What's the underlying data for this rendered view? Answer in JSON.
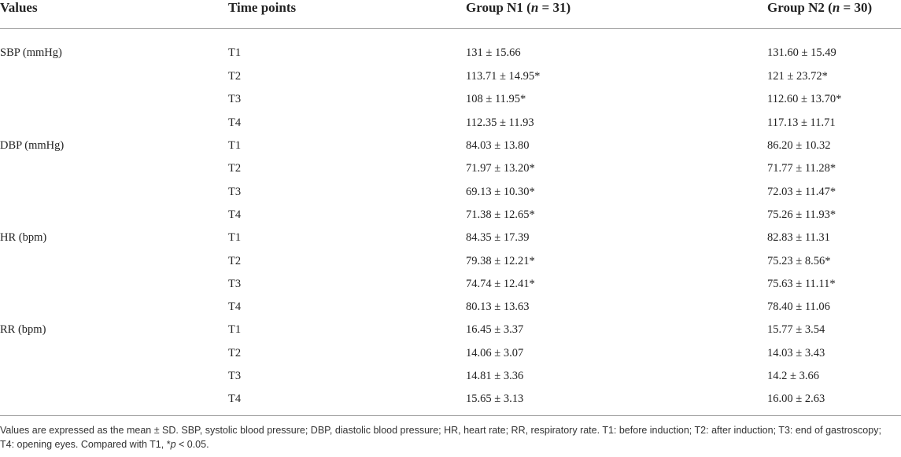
{
  "table": {
    "headers": {
      "values": "Values",
      "time_points": "Time points",
      "group_n1_prefix": "Group N1 (",
      "group_n1_n": "n",
      "group_n1_suffix": " = 31)",
      "group_n2_prefix": "Group N2 (",
      "group_n2_n": "n",
      "group_n2_suffix": " = 30)"
    },
    "rows": [
      {
        "variable": "SBP (mmHg)",
        "time": "T1",
        "n1": "131 ± 15.66",
        "n2": "131.60 ± 15.49"
      },
      {
        "variable": "",
        "time": "T2",
        "n1": "113.71 ± 14.95*",
        "n2": "121 ± 23.72*"
      },
      {
        "variable": "",
        "time": "T3",
        "n1": "108 ± 11.95*",
        "n2": "112.60 ± 13.70*"
      },
      {
        "variable": "",
        "time": "T4",
        "n1": "112.35 ± 11.93",
        "n2": "117.13 ± 11.71"
      },
      {
        "variable": "DBP (mmHg)",
        "time": "T1",
        "n1": "84.03 ± 13.80",
        "n2": "86.20 ± 10.32"
      },
      {
        "variable": "",
        "time": "T2",
        "n1": "71.97 ± 13.20*",
        "n2": "71.77 ± 11.28*"
      },
      {
        "variable": "",
        "time": "T3",
        "n1": "69.13 ± 10.30*",
        "n2": "72.03 ± 11.47*"
      },
      {
        "variable": "",
        "time": "T4",
        "n1": "71.38 ± 12.65*",
        "n2": "75.26 ± 11.93*"
      },
      {
        "variable": "HR (bpm)",
        "time": "T1",
        "n1": "84.35 ± 17.39",
        "n2": "82.83 ± 11.31"
      },
      {
        "variable": "",
        "time": "T2",
        "n1": "79.38 ± 12.21*",
        "n2": "75.23 ± 8.56*"
      },
      {
        "variable": "",
        "time": "T3",
        "n1": "74.74 ± 12.41*",
        "n2": "75.63 ± 11.11*"
      },
      {
        "variable": "",
        "time": "T4",
        "n1": "80.13 ± 13.63",
        "n2": "78.40 ± 11.06"
      },
      {
        "variable": "RR (bpm)",
        "time": "T1",
        "n1": "16.45 ± 3.37",
        "n2": "15.77 ± 3.54"
      },
      {
        "variable": "",
        "time": "T2",
        "n1": "14.06 ± 3.07",
        "n2": "14.03 ± 3.43"
      },
      {
        "variable": "",
        "time": "T3",
        "n1": "14.81 ± 3.36",
        "n2": "14.2 ± 3.66"
      },
      {
        "variable": "",
        "time": "T4",
        "n1": "15.65 ± 3.13",
        "n2": "16.00 ± 2.63"
      }
    ]
  },
  "footnote": {
    "main": "Values are expressed as the mean ± SD. SBP, systolic blood pressure; DBP, diastolic blood pressure; HR, heart rate; RR, respiratory rate. T1: before induction; T2: after induction; T3: end of gastroscopy; T4: opening eyes. Compared with T1, *",
    "p_symbol": "p",
    "tail": " < 0.05."
  }
}
